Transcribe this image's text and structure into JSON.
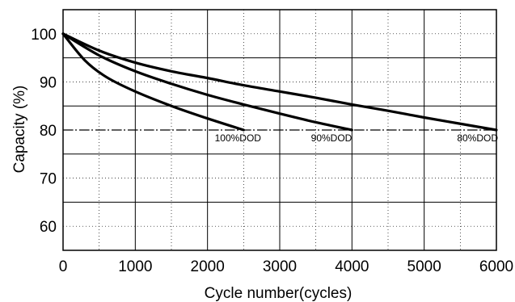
{
  "chart_data": {
    "type": "line",
    "title": "",
    "xlabel": "Cycle number(cycles)",
    "ylabel": "Capacity (%)",
    "xlim": [
      0,
      6000
    ],
    "ylim": [
      55,
      105
    ],
    "xticks": [
      0,
      1000,
      2000,
      3000,
      4000,
      5000,
      6000
    ],
    "xtick_labels": [
      "0",
      "1000",
      "2000",
      "3000",
      "4000",
      "5000",
      "6000"
    ],
    "yticks": [
      60,
      70,
      80,
      90,
      100
    ],
    "ytick_labels": [
      "60",
      "70",
      "80",
      "90",
      "100"
    ],
    "grid": true,
    "legend": "none",
    "reference_line": {
      "y": 80,
      "style": "dash-dot"
    },
    "series": [
      {
        "name": "100%DOD",
        "x": [
          0,
          300,
          600,
          1000,
          1500,
          2000,
          2500
        ],
        "y": [
          100,
          94.5,
          91,
          88,
          85,
          82.4,
          80
        ]
      },
      {
        "name": "90%DOD",
        "x": [
          0,
          500,
          1000,
          1500,
          2000,
          2500,
          3000,
          3500,
          4000
        ],
        "y": [
          100,
          95.5,
          92.2,
          89.6,
          87.3,
          85.3,
          83.4,
          81.6,
          80
        ]
      },
      {
        "name": "80%DOD",
        "x": [
          0,
          500,
          1000,
          1500,
          2000,
          2500,
          3000,
          3500,
          4000,
          4500,
          5000,
          5500,
          6000
        ],
        "y": [
          100,
          96.5,
          94,
          92.2,
          90.8,
          89.3,
          88,
          86.7,
          85.3,
          84,
          82.6,
          81.3,
          80
        ]
      }
    ]
  }
}
